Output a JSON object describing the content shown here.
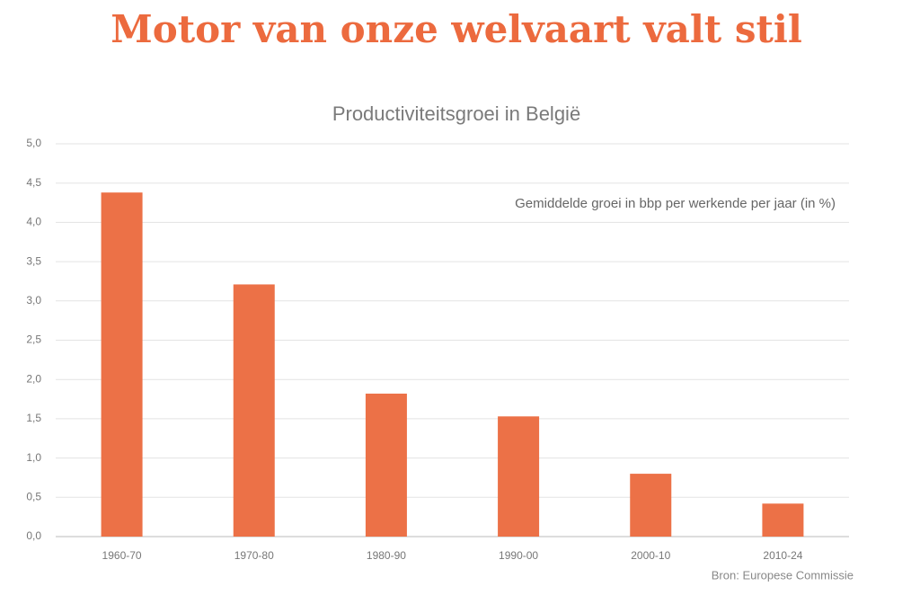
{
  "chart_data": {
    "type": "bar",
    "title": "Motor van onze welvaart valt stil",
    "subtitle": "Productiviteitsgroei in België",
    "annotation": "Gemiddelde groei in bbp per werkende per jaar (in %)",
    "source": "Bron: Europese Commissie",
    "categories": [
      "1960-70",
      "1970-80",
      "1980-90",
      "1990-00",
      "2000-10",
      "2010-24"
    ],
    "values": [
      4.38,
      3.21,
      1.82,
      1.53,
      0.8,
      0.42
    ],
    "color": "#ec7147",
    "ylim": [
      0,
      5
    ],
    "yticks": [
      {
        "value": 0,
        "label": "0,0"
      },
      {
        "value": 0.5,
        "label": "0,5"
      },
      {
        "value": 1,
        "label": "1,0"
      },
      {
        "value": 1.5,
        "label": "1,5"
      },
      {
        "value": 2,
        "label": "2,0"
      },
      {
        "value": 2.5,
        "label": "2,5"
      },
      {
        "value": 3,
        "label": "3,0"
      },
      {
        "value": 3.5,
        "label": "3,5"
      },
      {
        "value": 4,
        "label": "4,0"
      },
      {
        "value": 4.5,
        "label": "4,5"
      },
      {
        "value": 5,
        "label": "5,0"
      }
    ],
    "grid": true
  }
}
